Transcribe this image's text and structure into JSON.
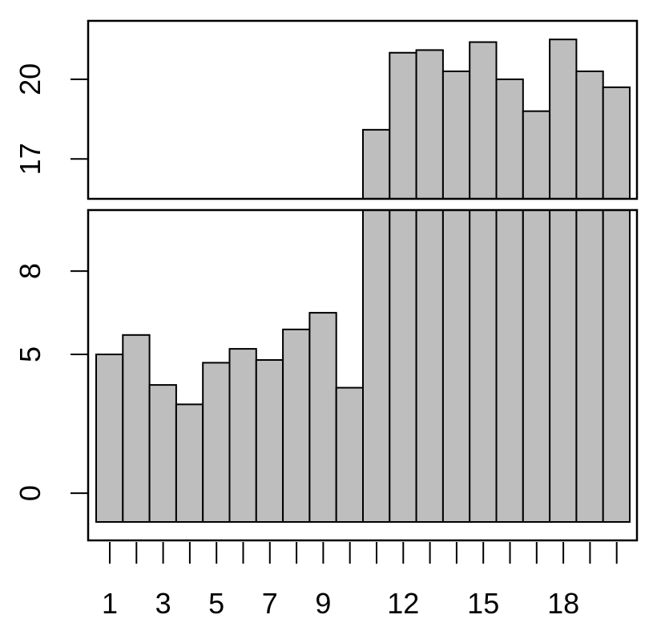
{
  "chart_data": {
    "type": "bar",
    "broken_axis": true,
    "x": [
      1,
      2,
      3,
      4,
      5,
      6,
      7,
      8,
      9,
      10,
      11,
      12,
      13,
      14,
      15,
      16,
      17,
      18,
      19,
      20
    ],
    "values": [
      5.0,
      5.7,
      3.9,
      3.2,
      4.7,
      5.2,
      4.8,
      5.9,
      6.5,
      3.8,
      18.1,
      21.0,
      21.1,
      20.3,
      21.4,
      20.0,
      18.8,
      21.5,
      20.3,
      19.7
    ],
    "x_tick_labels": [
      "1",
      "3",
      "5",
      "7",
      "9",
      "12",
      "15",
      "18"
    ],
    "x_tick_label_values": [
      1,
      3,
      5,
      7,
      9,
      12,
      15,
      18
    ],
    "lower_panel": {
      "ylim": [
        -1.7,
        10.2
      ],
      "y_ticks": [
        0,
        5,
        8
      ],
      "y_tick_labels": [
        "0",
        "5",
        "8"
      ]
    },
    "upper_panel": {
      "ylim": [
        15.5,
        22.2
      ],
      "y_ticks": [
        17,
        20
      ],
      "y_tick_labels": [
        "17",
        "20"
      ]
    },
    "bar_fill": "#bebebe",
    "grid": false,
    "title": "",
    "xlabel": "",
    "ylabel": ""
  }
}
